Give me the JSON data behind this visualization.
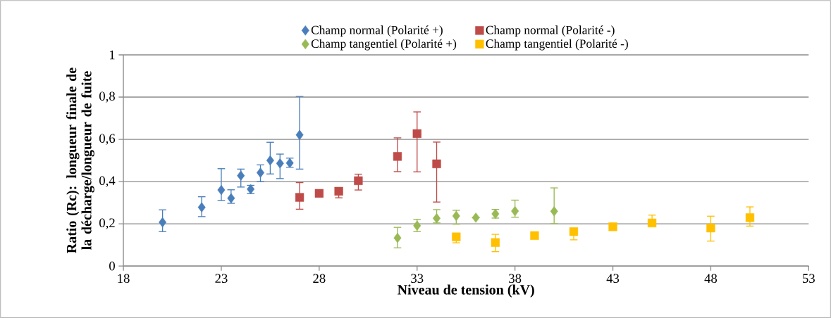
{
  "chart_data": {
    "type": "scatter",
    "xlabel": "Niveau de tension (kV)",
    "ylabel": "Ratio (Rc): longueur finale de la décharge/longueur de fuite",
    "xlim": [
      18,
      53
    ],
    "xticks": [
      18,
      23,
      28,
      33,
      38,
      43,
      48,
      53
    ],
    "ylim": [
      0,
      1
    ],
    "yticks": [
      0,
      {
        "value": 0.2,
        "label": "0,2"
      },
      {
        "value": 0.4,
        "label": "0,4"
      },
      {
        "value": 0.6,
        "label": "0,6"
      },
      {
        "value": 0.8,
        "label": "0,8"
      },
      1
    ],
    "grid": "y",
    "legend": "top",
    "series": [
      {
        "name": "Champ normal (Polarité +)",
        "color": "#4a7ebb",
        "marker": "diamond",
        "x": [
          20,
          22,
          23,
          23.5,
          24,
          24.5,
          25,
          25.5,
          26,
          26.5,
          27
        ],
        "values": [
          0.207,
          0.278,
          0.36,
          0.321,
          0.428,
          0.364,
          0.442,
          0.5,
          0.486,
          0.488,
          0.621
        ],
        "errors": [
          [
            0.163,
            0.266
          ],
          [
            0.234,
            0.328
          ],
          [
            0.31,
            0.461
          ],
          [
            0.297,
            0.361
          ],
          [
            0.374,
            0.459
          ],
          [
            0.343,
            0.382
          ],
          [
            0.399,
            0.479
          ],
          [
            0.436,
            0.586
          ],
          [
            0.414,
            0.53
          ],
          [
            0.468,
            0.511
          ],
          [
            0.459,
            0.803
          ]
        ]
      },
      {
        "name": "Champ normal (Polarité -)",
        "color": "#be4b48",
        "marker": "square",
        "x": [
          27,
          28,
          29,
          30,
          32,
          33,
          34
        ],
        "values": [
          0.325,
          0.344,
          0.354,
          0.404,
          0.519,
          0.627,
          0.484
        ],
        "errors": [
          [
            0.269,
            0.395
          ],
          null,
          [
            0.323,
            0.354
          ],
          [
            0.36,
            0.435
          ],
          [
            0.447,
            0.607
          ],
          [
            0.446,
            0.73
          ],
          [
            0.303,
            0.587
          ]
        ]
      },
      {
        "name": "Champ tangentiel (Polarité +)",
        "color": "#98b954",
        "marker": "diamond",
        "x": [
          32,
          33,
          34,
          35,
          36,
          37,
          38,
          40
        ],
        "values": [
          0.133,
          0.191,
          0.226,
          0.237,
          0.229,
          0.247,
          0.26,
          0.259
        ],
        "errors": [
          [
            0.086,
            0.183
          ],
          [
            0.163,
            0.221
          ],
          [
            0.204,
            0.267
          ],
          [
            0.198,
            0.264
          ],
          null,
          [
            0.227,
            0.268
          ],
          [
            0.231,
            0.312
          ],
          [
            0.2,
            0.37
          ]
        ]
      },
      {
        "name": "Champ tangentiel (Polarité -)",
        "color": "#ffc000",
        "marker": "square",
        "x": [
          35,
          37,
          39,
          41,
          43,
          45,
          48,
          50
        ],
        "values": [
          0.138,
          0.111,
          0.144,
          0.163,
          0.186,
          0.204,
          0.18,
          0.229
        ],
        "errors": [
          [
            0.11,
            0.138
          ],
          [
            0.068,
            0.15
          ],
          null,
          [
            0.124,
            0.163
          ],
          null,
          [
            0.204,
            0.241
          ],
          [
            0.118,
            0.236
          ],
          [
            0.189,
            0.28
          ]
        ]
      }
    ]
  }
}
